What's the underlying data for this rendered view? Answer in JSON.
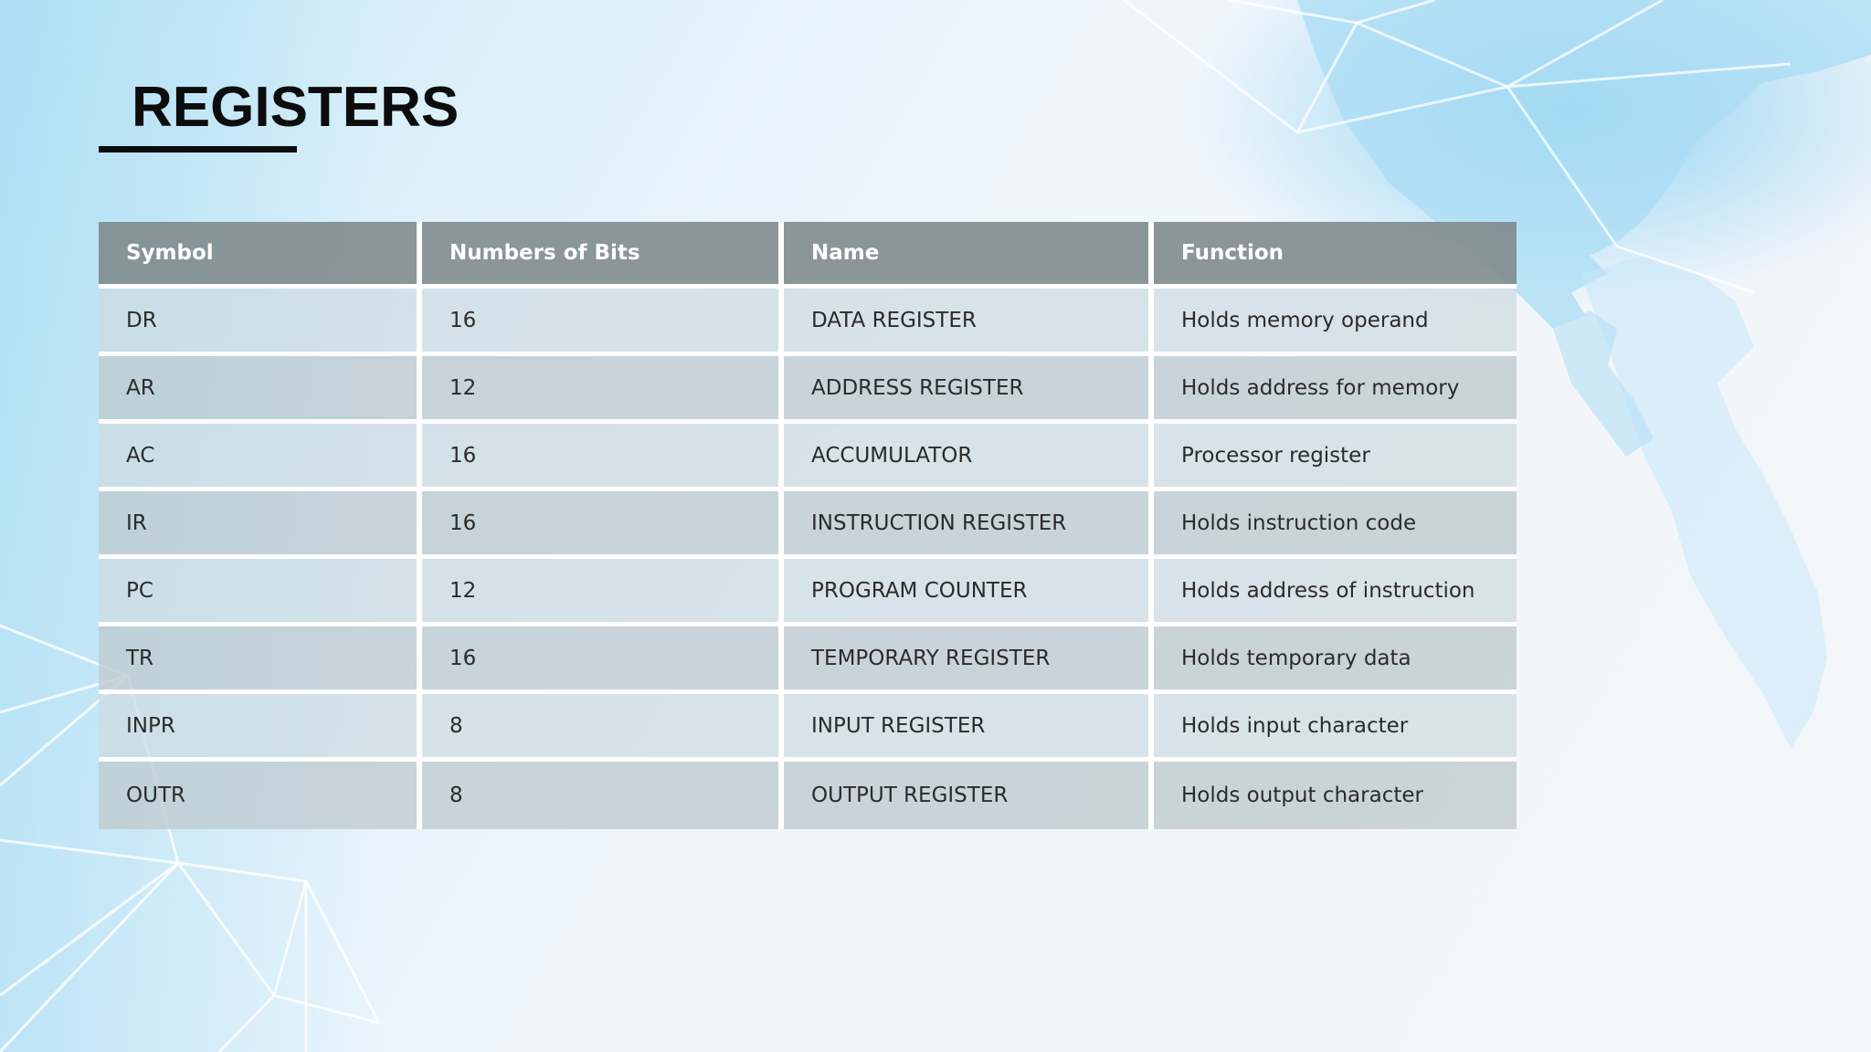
{
  "slide": {
    "title": "REGISTERS"
  },
  "table": {
    "headers": [
      "Symbol",
      "Numbers of Bits",
      "Name",
      "Function"
    ],
    "rows": [
      [
        "DR",
        "16",
        "DATA REGISTER",
        "Holds memory operand"
      ],
      [
        "AR",
        "12",
        "ADDRESS REGISTER",
        "Holds address for memory"
      ],
      [
        "AC",
        "16",
        "ACCUMULATOR",
        "Processor register"
      ],
      [
        "IR",
        "16",
        "INSTRUCTION REGISTER",
        "Holds instruction code"
      ],
      [
        "PC",
        "12",
        "PROGRAM COUNTER",
        "Holds address of instruction"
      ],
      [
        "TR",
        "16",
        "TEMPORARY REGISTER",
        "Holds temporary data"
      ],
      [
        "INPR",
        "8",
        "INPUT REGISTER",
        "Holds input character"
      ],
      [
        "OUTR",
        "8",
        "OUTPUT REGISTER",
        "Holds output character"
      ]
    ]
  },
  "colors": {
    "header_bg": "#7d898a",
    "accent_blue": "#8fd3f2",
    "title_text": "#0d0d0d"
  }
}
